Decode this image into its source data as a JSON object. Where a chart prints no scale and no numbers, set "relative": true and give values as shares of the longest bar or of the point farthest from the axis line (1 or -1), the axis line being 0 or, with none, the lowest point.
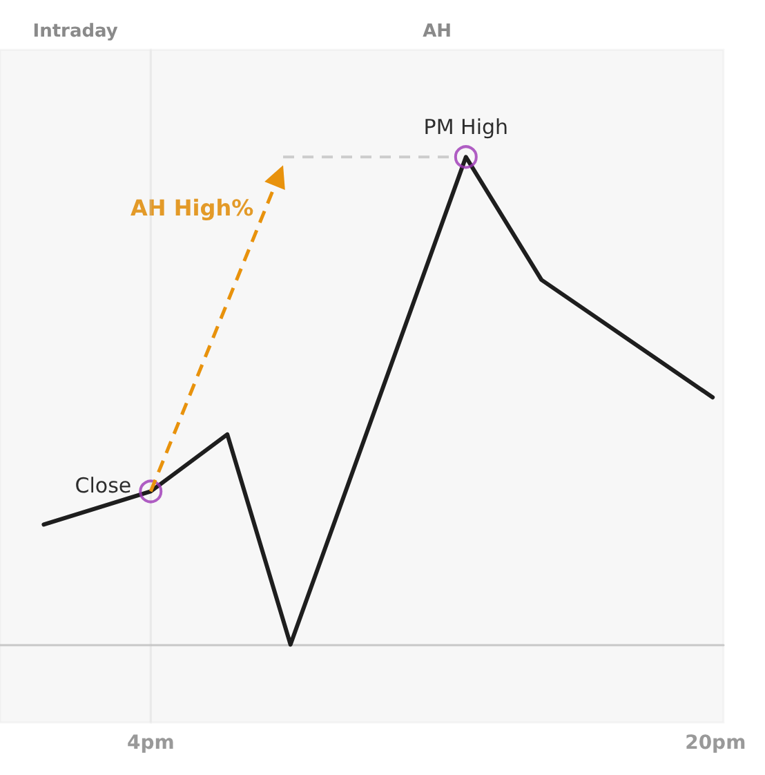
{
  "chart_data": {
    "type": "line",
    "relative": true,
    "marker": "none",
    "grid": false,
    "xlim": [
      -0.27,
      20.23
    ],
    "xticks": [
      {
        "value": 4,
        "label": "4pm"
      },
      {
        "value": 20,
        "label": "20pm"
      }
    ],
    "series": [
      {
        "color": "#1e1e1e",
        "x": [
          0.97,
          4,
          6.17,
          7.96,
          12.93,
          15.07,
          19.92
        ],
        "values": [
          0.246,
          0.314,
          0.431,
          0,
          1,
          0.748,
          0.507
        ]
      },
      {
        "type": "scatter",
        "marker": "circle",
        "color": "#9c36b5",
        "x": [
          4,
          12.93
        ],
        "values": [
          0.314,
          1
        ]
      }
    ],
    "bands": [
      {
        "axis": "x",
        "from": -0.27,
        "to": 4,
        "label": "Intraday",
        "color": "#c8c8c8"
      },
      {
        "axis": "x",
        "from": 4,
        "to": 20.23,
        "label": "AH",
        "color": "#c8c8c8"
      }
    ],
    "annotations": [
      {
        "text": "Close",
        "x": 4,
        "y": 0.314
      },
      {
        "text": "PM High",
        "x": 12.93,
        "y": 1
      },
      "AH High%"
    ]
  }
}
